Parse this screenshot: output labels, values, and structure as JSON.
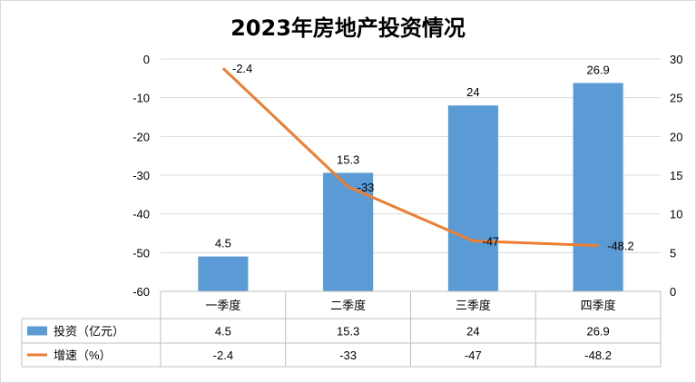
{
  "chart_data": {
    "type": "bar+line",
    "title": "2023年房地产投资情况",
    "categories": [
      "一季度",
      "二季度",
      "三季度",
      "四季度"
    ],
    "series": [
      {
        "name": "投资（亿元）",
        "type": "bar",
        "axis": "right",
        "values": [
          4.5,
          15.3,
          24,
          26.9
        ],
        "color": "#5b9bd5"
      },
      {
        "name": "增速（%）",
        "type": "line",
        "axis": "left",
        "values": [
          -2.4,
          -33,
          -47,
          -48.2
        ],
        "color": "#ed7d31"
      }
    ],
    "left_axis": {
      "min": -60,
      "max": 0,
      "step": 10,
      "ticks": [
        "0",
        "-10",
        "-20",
        "-30",
        "-40",
        "-50",
        "-60"
      ]
    },
    "right_axis": {
      "min": 0,
      "max": 30,
      "step": 5,
      "ticks": [
        "30",
        "25",
        "20",
        "15",
        "10",
        "5",
        "0"
      ]
    },
    "data_table": true,
    "gridlines": true,
    "legend": "data-table"
  }
}
